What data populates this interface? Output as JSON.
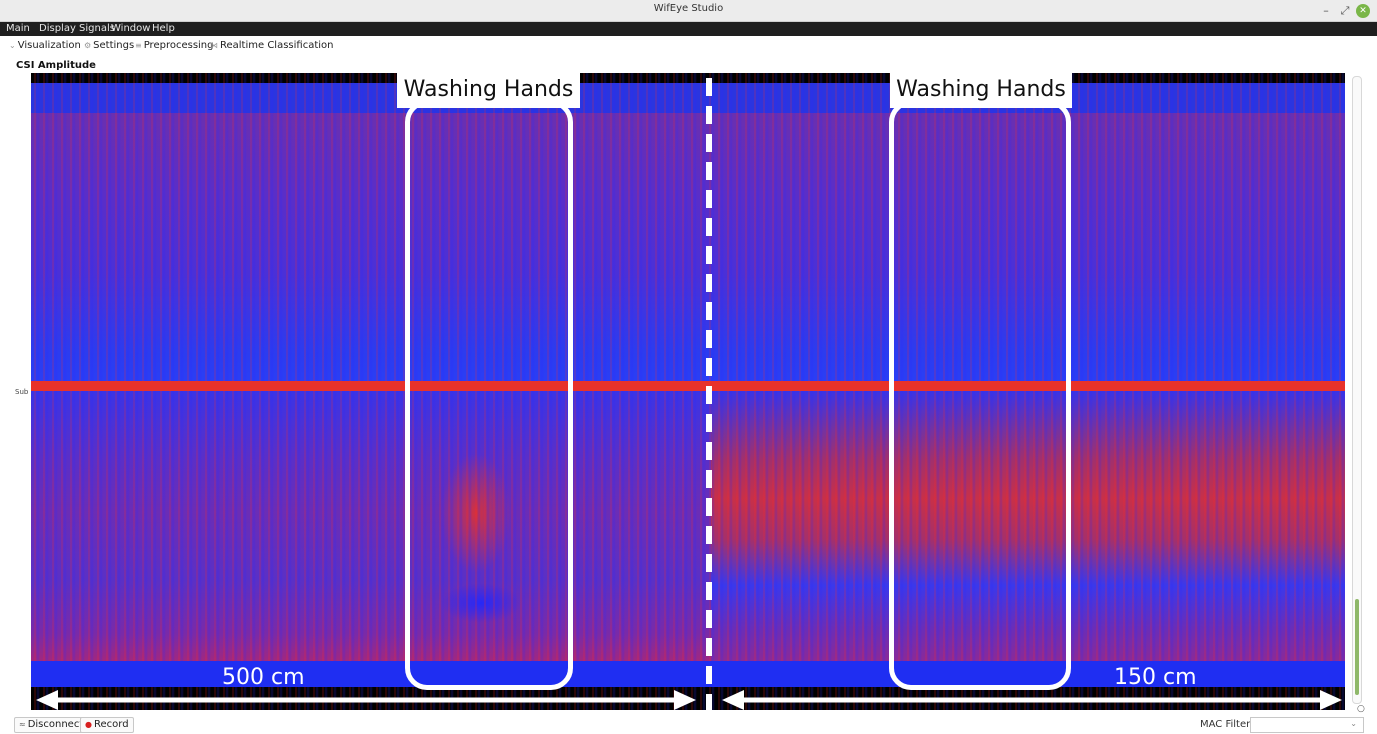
{
  "window": {
    "title": "WifEye Studio",
    "minimize": "–",
    "restore": "⤢",
    "close": "✕"
  },
  "menu": [
    "Main",
    "Display Signals",
    "Window",
    "Help"
  ],
  "tabs": [
    {
      "label": "Visualization",
      "icon": "chart-icon"
    },
    {
      "label": "Settings",
      "icon": "gear-icon"
    },
    {
      "label": "Preprocessing",
      "icon": "filter-icon"
    },
    {
      "label": "Realtime Classification",
      "icon": "classify-icon"
    }
  ],
  "plot": {
    "title": "CSI Amplitude",
    "y_label": "Sub",
    "annotations": {
      "left_activity": "Washing Hands",
      "right_activity": "Washing Hands",
      "left_distance": "500 cm",
      "right_distance": "150 cm"
    }
  },
  "bottom": {
    "disconnect_label": "Disconnect",
    "record_label": "Record",
    "mac_filter_label": "MAC Filter",
    "mac_filter_value": ""
  },
  "colors": {
    "low": "#1a1aff",
    "high": "#e8322a",
    "frame": "#000000",
    "accent_green": "#7ab648"
  }
}
